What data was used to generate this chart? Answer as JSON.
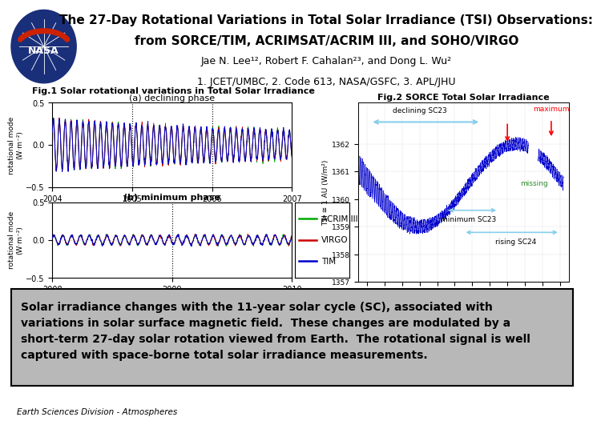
{
  "title_line1": "The 27-Day Rotational Variations in Total Solar Irradiance (TSI) Observations:",
  "title_line2": "from SORCE/TIM, ACRIMSAT/ACRIM III, and SOHO/VIRGO",
  "authors": "Jae N. Lee¹², Robert F. Cahalan²³, and Dong L. Wu²",
  "affiliations": "1. JCET/UMBC, 2. Code 613, NASA/GSFC, 3. APL/JHU",
  "fig1_title": "Fig.1 Solar rotational variations in Total Solar Irradiance",
  "fig1a_subtitle": "(a) declining phase",
  "fig1b_subtitle": "(b) minimum phase",
  "fig2_title": "Fig.2 SORCE Total Solar Irradiance",
  "legend_labels": [
    "ACRIM III",
    "VIRGO",
    "TIM"
  ],
  "legend_colors": [
    "#00aa00",
    "#cc0000",
    "#0000cc"
  ],
  "body_text_lines": [
    "Solar irradiance changes with the 11-year solar cycle (SC), associated with",
    "variations in solar surface magnetic field.  These changes are modulated by a",
    "short-term 27-day solar rotation viewed from Earth.  The rotational signal is well",
    "captured with space-borne total solar irradiance measurements."
  ],
  "footer_text": "Earth Sciences Division - Atmospheres",
  "bg_color": "#ffffff",
  "body_bg": "#b8b8b8"
}
